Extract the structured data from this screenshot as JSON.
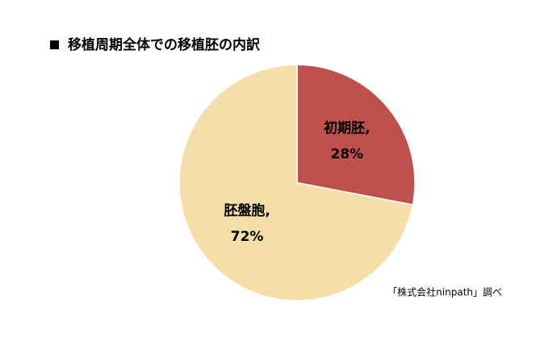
{
  "chart_data": {
    "type": "pie",
    "title": "移植周期全体での移植胚の内訳",
    "categories": [
      "初期胚,",
      "胚盤胞,"
    ],
    "values": [
      28,
      72
    ],
    "value_labels": [
      "28%",
      "72%"
    ],
    "colors": [
      "#c0504d",
      "#f5dfa8"
    ],
    "source": "「株式会社ninpath」調べ"
  }
}
